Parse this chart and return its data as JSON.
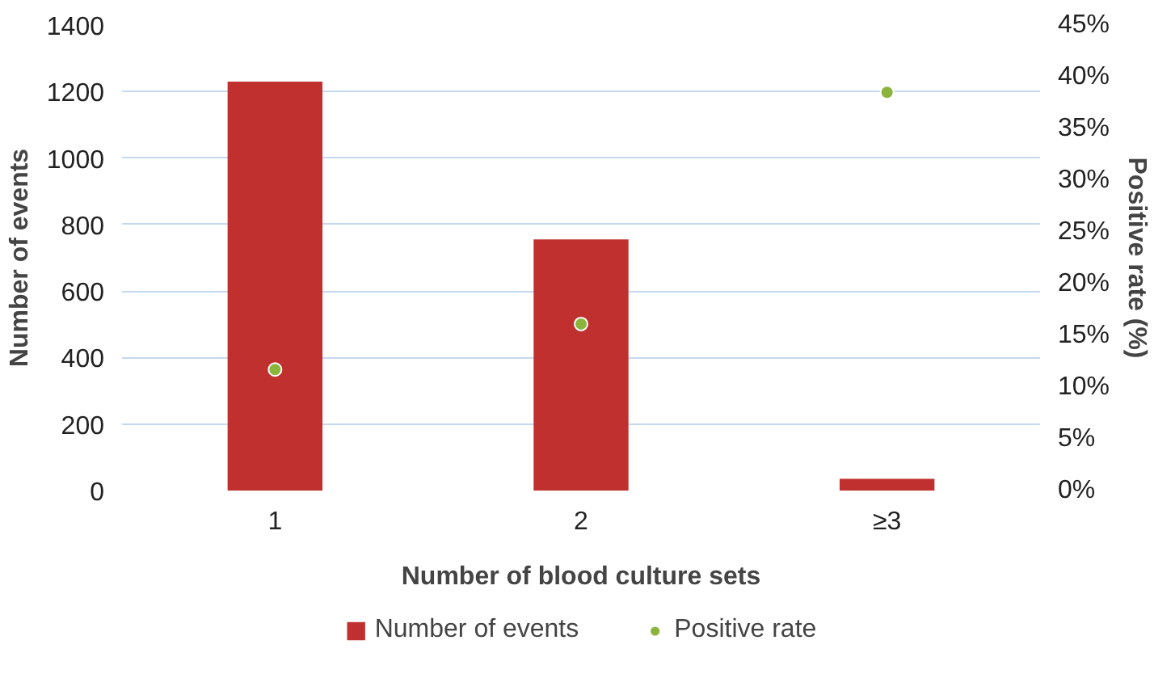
{
  "chart_data": {
    "type": "bar",
    "categories": [
      "1",
      "2",
      "≥3"
    ],
    "xlabel": "Number of blood culture sets",
    "ylabel": "Number of events",
    "y2label": "Positive rate (%)",
    "series": [
      {
        "name": "Number of events",
        "color": "#c0302f",
        "values": [
          1230,
          755,
          35
        ]
      },
      {
        "name": "Positive rate",
        "type": "scatter",
        "axis": "y2",
        "color": "#8ab43c",
        "values": [
          11.7,
          16.1,
          38.5
        ]
      }
    ],
    "ylim": [
      0,
      1400
    ],
    "yticks": [
      0,
      200,
      400,
      600,
      800,
      1000,
      1200,
      1400
    ],
    "y2lim": [
      0,
      45
    ],
    "y2ticks": [
      {
        "value": 0,
        "label": "0%"
      },
      {
        "value": 5,
        "label": "5%"
      },
      {
        "value": 10,
        "label": "10%"
      },
      {
        "value": 15,
        "label": "15%"
      },
      {
        "value": 20,
        "label": "20%"
      },
      {
        "value": 25,
        "label": "25%"
      },
      {
        "value": 30,
        "label": "30%"
      },
      {
        "value": 35,
        "label": "35%"
      },
      {
        "value": 40,
        "label": "40%"
      },
      {
        "value": 45,
        "label": "45%"
      }
    ],
    "grid": "y",
    "legend": "bottom",
    "marker": "circle"
  }
}
